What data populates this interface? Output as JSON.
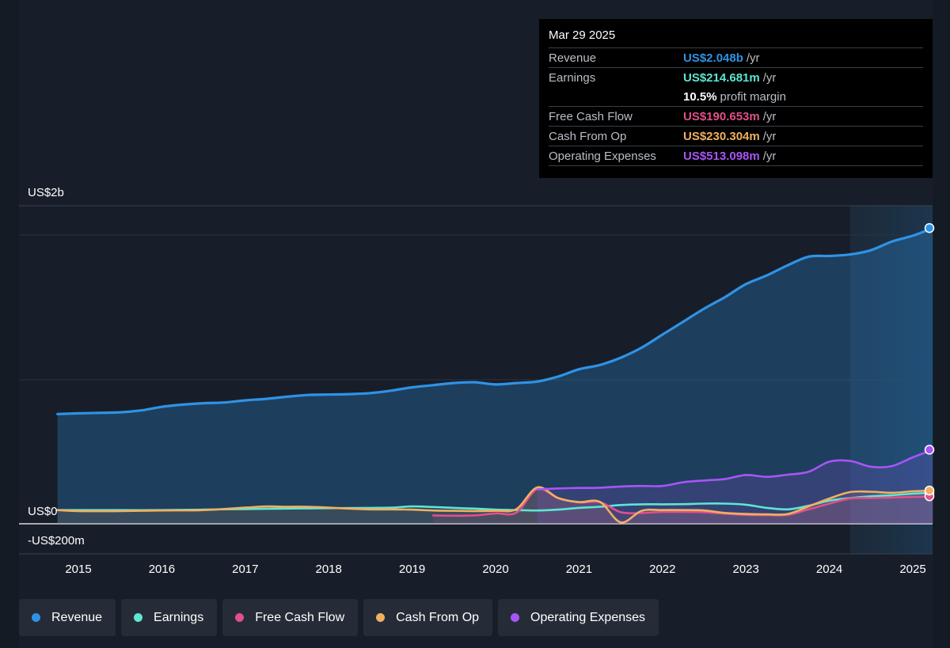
{
  "tooltip": {
    "date": "Mar 29 2025",
    "rows": [
      {
        "label": "Revenue",
        "value": "US$2.048b",
        "unit": "/yr",
        "color": "#2e93e6"
      },
      {
        "label": "Earnings",
        "value": "US$214.681m",
        "unit": "/yr",
        "color": "#5ee6d2"
      },
      {
        "label": "",
        "value": "10.5%",
        "unit": "profit margin",
        "color": "#ffffff"
      },
      {
        "label": "Free Cash Flow",
        "value": "US$190.653m",
        "unit": "/yr",
        "color": "#e0508a"
      },
      {
        "label": "Cash From Op",
        "value": "US$230.304m",
        "unit": "/yr",
        "color": "#f0b060"
      },
      {
        "label": "Operating Expenses",
        "value": "US$513.098m",
        "unit": "/yr",
        "color": "#a855f7"
      }
    ]
  },
  "legend": [
    {
      "label": "Revenue",
      "color": "#2e93e6"
    },
    {
      "label": "Earnings",
      "color": "#5ee6d2"
    },
    {
      "label": "Free Cash Flow",
      "color": "#e0508a"
    },
    {
      "label": "Cash From Op",
      "color": "#f0b060"
    },
    {
      "label": "Operating Expenses",
      "color": "#a855f7"
    }
  ],
  "chart_data": {
    "type": "line",
    "y_tick_labels": [
      "US$2b",
      "US$0",
      "-US$200m"
    ],
    "x_tick_labels": [
      "2015",
      "2016",
      "2017",
      "2018",
      "2019",
      "2020",
      "2021",
      "2022",
      "2023",
      "2024",
      "2025"
    ],
    "ylim": [
      -200,
      2200
    ],
    "x_range": [
      2014.43,
      2025.4
    ],
    "highlight_start": 2024.25,
    "series": [
      {
        "name": "Revenue",
        "color": "#2e93e6",
        "fill": true,
        "points": [
          [
            2014.75,
            760
          ],
          [
            2015.0,
            765
          ],
          [
            2015.5,
            772
          ],
          [
            2015.75,
            785
          ],
          [
            2016.0,
            810
          ],
          [
            2016.25,
            825
          ],
          [
            2016.5,
            835
          ],
          [
            2016.75,
            840
          ],
          [
            2017.0,
            855
          ],
          [
            2017.25,
            865
          ],
          [
            2017.5,
            880
          ],
          [
            2017.75,
            892
          ],
          [
            2018.0,
            895
          ],
          [
            2018.25,
            898
          ],
          [
            2018.5,
            905
          ],
          [
            2018.75,
            922
          ],
          [
            2019.0,
            945
          ],
          [
            2019.25,
            960
          ],
          [
            2019.5,
            975
          ],
          [
            2019.75,
            980
          ],
          [
            2020.0,
            965
          ],
          [
            2020.25,
            975
          ],
          [
            2020.5,
            985
          ],
          [
            2020.75,
            1020
          ],
          [
            2021.0,
            1070
          ],
          [
            2021.25,
            1100
          ],
          [
            2021.5,
            1150
          ],
          [
            2021.75,
            1220
          ],
          [
            2022.0,
            1310
          ],
          [
            2022.25,
            1400
          ],
          [
            2022.5,
            1490
          ],
          [
            2022.75,
            1570
          ],
          [
            2023.0,
            1660
          ],
          [
            2023.25,
            1720
          ],
          [
            2023.5,
            1790
          ],
          [
            2023.75,
            1850
          ],
          [
            2024.0,
            1855
          ],
          [
            2024.25,
            1865
          ],
          [
            2024.5,
            1895
          ],
          [
            2024.75,
            1955
          ],
          [
            2025.0,
            1995
          ],
          [
            2025.24,
            2048
          ]
        ]
      },
      {
        "name": "Earnings",
        "color": "#5ee6d2",
        "fill": false,
        "points": [
          [
            2014.75,
            95
          ],
          [
            2015.0,
            95
          ],
          [
            2015.5,
            95
          ],
          [
            2016.0,
            95
          ],
          [
            2016.5,
            98
          ],
          [
            2017.0,
            102
          ],
          [
            2017.5,
            105
          ],
          [
            2018.0,
            108
          ],
          [
            2018.5,
            110
          ],
          [
            2018.75,
            112
          ],
          [
            2019.0,
            120
          ],
          [
            2019.25,
            116
          ],
          [
            2019.5,
            110
          ],
          [
            2019.75,
            105
          ],
          [
            2020.0,
            98
          ],
          [
            2020.25,
            95
          ],
          [
            2020.5,
            92
          ],
          [
            2020.75,
            98
          ],
          [
            2021.0,
            110
          ],
          [
            2021.25,
            118
          ],
          [
            2021.5,
            130
          ],
          [
            2021.75,
            135
          ],
          [
            2022.0,
            135
          ],
          [
            2022.25,
            136
          ],
          [
            2022.5,
            140
          ],
          [
            2022.75,
            140
          ],
          [
            2023.0,
            132
          ],
          [
            2023.25,
            110
          ],
          [
            2023.5,
            100
          ],
          [
            2023.75,
            125
          ],
          [
            2024.0,
            160
          ],
          [
            2024.25,
            178
          ],
          [
            2024.5,
            190
          ],
          [
            2024.75,
            198
          ],
          [
            2025.0,
            208
          ],
          [
            2025.24,
            214.7
          ]
        ]
      },
      {
        "name": "Free Cash Flow",
        "color": "#e0508a",
        "fill": true,
        "points": [
          [
            2019.25,
            58
          ],
          [
            2019.5,
            56
          ],
          [
            2019.75,
            58
          ],
          [
            2020.0,
            72
          ],
          [
            2020.25,
            78
          ],
          [
            2020.5,
            240
          ],
          [
            2020.75,
            178
          ],
          [
            2021.0,
            148
          ],
          [
            2021.25,
            150
          ],
          [
            2021.5,
            80
          ],
          [
            2021.75,
            75
          ],
          [
            2022.0,
            82
          ],
          [
            2022.25,
            82
          ],
          [
            2022.5,
            80
          ],
          [
            2022.75,
            70
          ],
          [
            2023.0,
            62
          ],
          [
            2023.25,
            60
          ],
          [
            2023.5,
            62
          ],
          [
            2023.75,
            100
          ],
          [
            2024.0,
            140
          ],
          [
            2024.25,
            175
          ],
          [
            2024.5,
            178
          ],
          [
            2024.75,
            182
          ],
          [
            2025.0,
            186
          ],
          [
            2025.24,
            190.7
          ]
        ]
      },
      {
        "name": "Cash From Op",
        "color": "#f0b060",
        "fill": true,
        "points": [
          [
            2014.75,
            95
          ],
          [
            2015.0,
            88
          ],
          [
            2015.5,
            88
          ],
          [
            2016.0,
            92
          ],
          [
            2016.5,
            95
          ],
          [
            2017.0,
            112
          ],
          [
            2017.25,
            120
          ],
          [
            2017.5,
            118
          ],
          [
            2017.75,
            118
          ],
          [
            2018.0,
            112
          ],
          [
            2018.25,
            105
          ],
          [
            2018.5,
            100
          ],
          [
            2018.75,
            100
          ],
          [
            2019.0,
            98
          ],
          [
            2019.25,
            92
          ],
          [
            2019.5,
            90
          ],
          [
            2019.75,
            88
          ],
          [
            2020.0,
            90
          ],
          [
            2020.25,
            102
          ],
          [
            2020.5,
            252
          ],
          [
            2020.75,
            178
          ],
          [
            2021.0,
            150
          ],
          [
            2021.25,
            152
          ],
          [
            2021.5,
            10
          ],
          [
            2021.75,
            90
          ],
          [
            2022.0,
            95
          ],
          [
            2022.25,
            95
          ],
          [
            2022.5,
            92
          ],
          [
            2022.75,
            75
          ],
          [
            2023.0,
            68
          ],
          [
            2023.25,
            65
          ],
          [
            2023.5,
            68
          ],
          [
            2023.75,
            120
          ],
          [
            2024.0,
            175
          ],
          [
            2024.25,
            220
          ],
          [
            2024.5,
            222
          ],
          [
            2024.75,
            215
          ],
          [
            2025.0,
            225
          ],
          [
            2025.24,
            230.3
          ]
        ]
      },
      {
        "name": "Operating Expenses",
        "color": "#a855f7",
        "fill": true,
        "points": [
          [
            2020.5,
            238
          ],
          [
            2020.75,
            245
          ],
          [
            2021.0,
            248
          ],
          [
            2021.25,
            250
          ],
          [
            2021.5,
            258
          ],
          [
            2021.75,
            262
          ],
          [
            2022.0,
            262
          ],
          [
            2022.25,
            288
          ],
          [
            2022.5,
            300
          ],
          [
            2022.75,
            310
          ],
          [
            2023.0,
            338
          ],
          [
            2023.25,
            325
          ],
          [
            2023.5,
            340
          ],
          [
            2023.75,
            360
          ],
          [
            2024.0,
            430
          ],
          [
            2024.25,
            435
          ],
          [
            2024.5,
            395
          ],
          [
            2024.75,
            400
          ],
          [
            2025.0,
            460
          ],
          [
            2025.24,
            513.1
          ]
        ]
      }
    ]
  }
}
